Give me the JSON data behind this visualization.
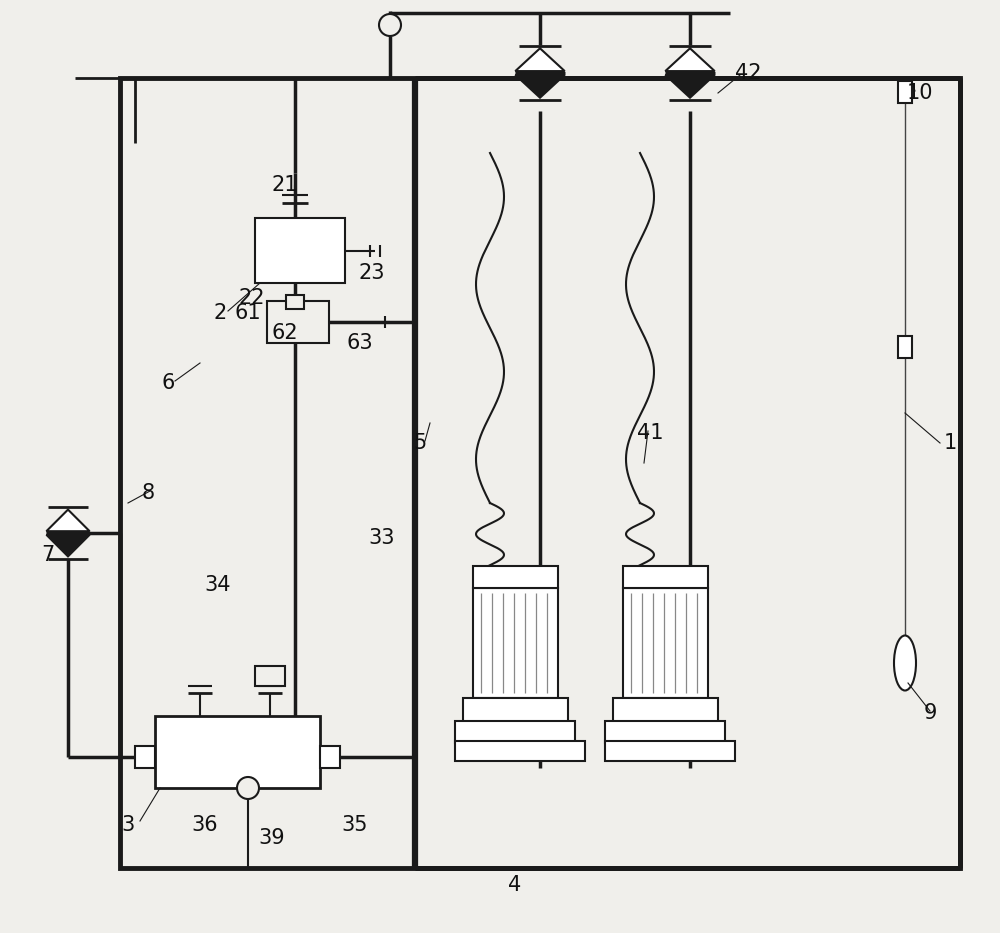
{
  "bg_color": "#f0efeb",
  "line_color": "#1a1a1a",
  "fill_dark": "#1a1a1a",
  "fill_gray": "#888888",
  "fig_width": 10.0,
  "fig_height": 9.33,
  "dpi": 100
}
